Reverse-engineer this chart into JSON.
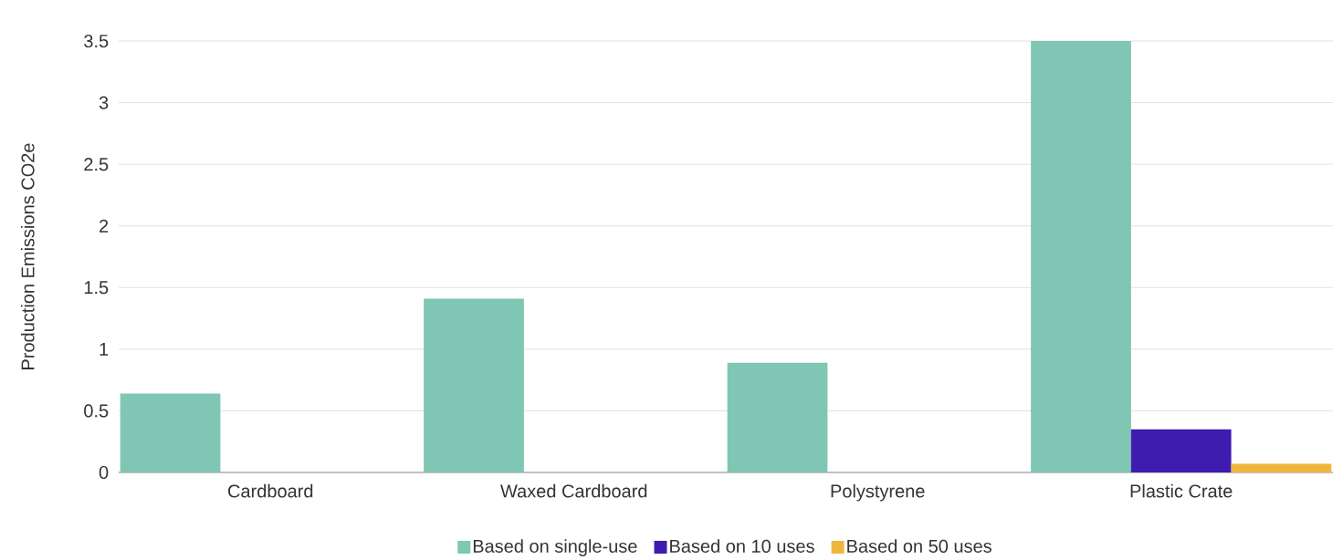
{
  "chart_data": {
    "type": "bar",
    "ylabel": "Production Emissions CO2e",
    "categories": [
      "Cardboard",
      "Waxed Cardboard",
      "Polystyrene",
      "Plastic Crate"
    ],
    "series": [
      {
        "name": "Based on single-use",
        "color": "#7fc6b4",
        "values": [
          0.64,
          1.41,
          0.89,
          3.5
        ]
      },
      {
        "name": "Based on 10 uses",
        "color": "#3f1cb0",
        "values": [
          null,
          null,
          null,
          0.35
        ]
      },
      {
        "name": "Based on 50 uses",
        "color": "#f0b63c",
        "values": [
          null,
          null,
          null,
          0.07
        ]
      }
    ],
    "ylim": [
      0,
      3.5
    ],
    "yticks": [
      0,
      0.5,
      1,
      1.5,
      2,
      2.5,
      3,
      3.5
    ],
    "grid": "y",
    "legend": "bottom"
  }
}
